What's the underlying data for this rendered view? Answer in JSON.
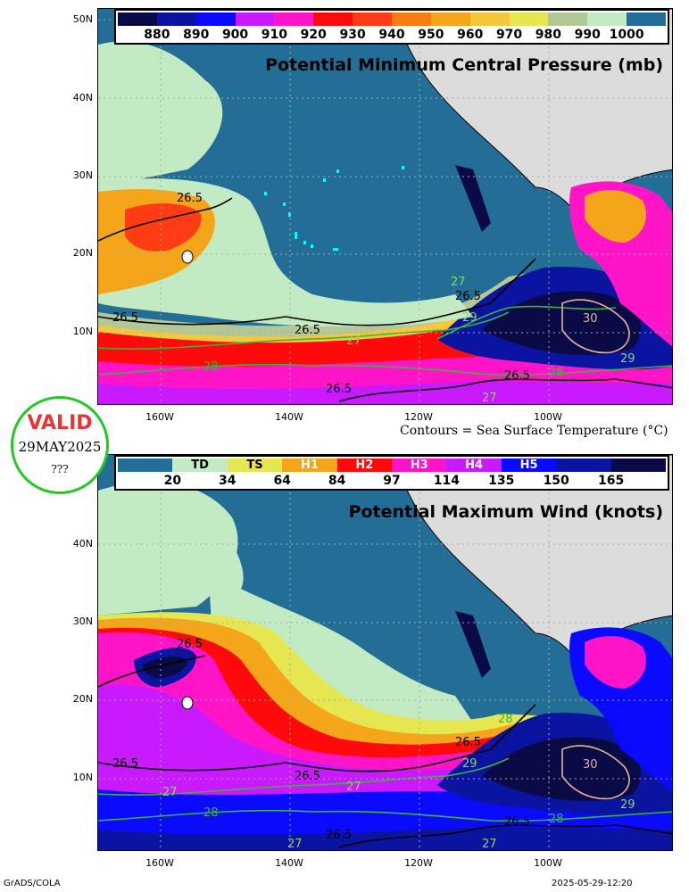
{
  "top_panel": {
    "title": "Potential Minimum Central Pressure (mb)",
    "colorbar": {
      "labels": [
        "880",
        "890",
        "900",
        "910",
        "920",
        "930",
        "940",
        "950",
        "960",
        "970",
        "980",
        "990",
        "1000"
      ],
      "colors": [
        "#0a0a46",
        "#0a14a0",
        "#0a0aff",
        "#c819ff",
        "#ff14c8",
        "#ff0a0a",
        "#ff3c14",
        "#fa7d14",
        "#f5a519",
        "#f5c83c",
        "#e6e650",
        "#b4c896",
        "#c3ebc3",
        "#236e96"
      ]
    }
  },
  "bottom_panel": {
    "title": "Potential Maximum Wind (knots)",
    "colorbar": {
      "category_labels": [
        "",
        "TD",
        "TS",
        "H1",
        "H2",
        "H3",
        "H4",
        "H5",
        "",
        "",
        ""
      ],
      "labels": [
        "20",
        "34",
        "64",
        "84",
        "97",
        "114",
        "135",
        "150",
        "165"
      ],
      "colors": [
        "#236e96",
        "#c3ebc3",
        "#e6e650",
        "#f5a519",
        "#ff0a0a",
        "#ff14c8",
        "#c819ff",
        "#0a0aff",
        "#0a14a0",
        "#0a0a46"
      ]
    }
  },
  "axes": {
    "lat_labels": [
      "50N",
      "40N",
      "30N",
      "20N",
      "10N"
    ],
    "lon_labels": [
      "160W",
      "140W",
      "120W",
      "100W"
    ]
  },
  "contour_caption": "Contours = Sea Surface Temperature (°C)",
  "contour_labels": [
    "26.5",
    "27",
    "28",
    "29",
    "30"
  ],
  "valid_badge": {
    "title": "VALID",
    "date": "29MAY2025",
    "time": "???"
  },
  "footer": {
    "left": "GrADS/COLA",
    "right": "2025-05-29-12:20"
  },
  "colors": {
    "ocean_low": "#236e96",
    "land": "#dcdcdc",
    "badge_ring": "#22c922",
    "badge_title": "#e83434"
  }
}
